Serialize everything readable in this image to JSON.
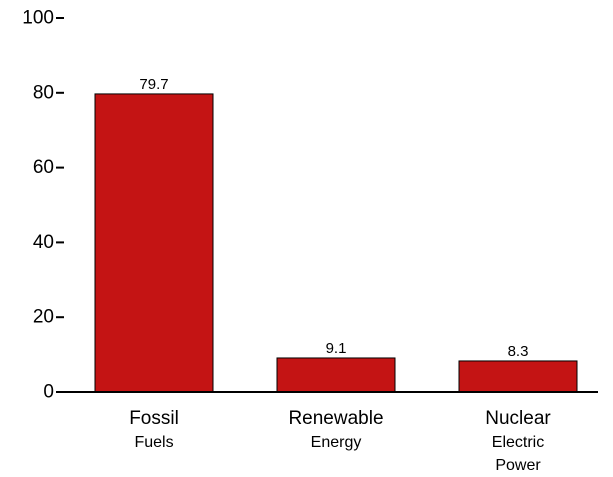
{
  "chart_data": {
    "type": "bar",
    "categories": [
      [
        "Fossil",
        "Fuels"
      ],
      [
        "Renewable",
        "Energy"
      ],
      [
        "Nuclear",
        "Electric",
        "Power"
      ]
    ],
    "values": [
      79.7,
      9.1,
      8.3
    ],
    "data_labels": [
      "79.7",
      "9.1",
      "8.3"
    ],
    "title": "",
    "xlabel": "",
    "ylabel": "",
    "ylim": [
      0,
      100
    ],
    "yticks": [
      0,
      20,
      40,
      60,
      80,
      100
    ],
    "grid": false,
    "bar_color": "#c41414"
  }
}
